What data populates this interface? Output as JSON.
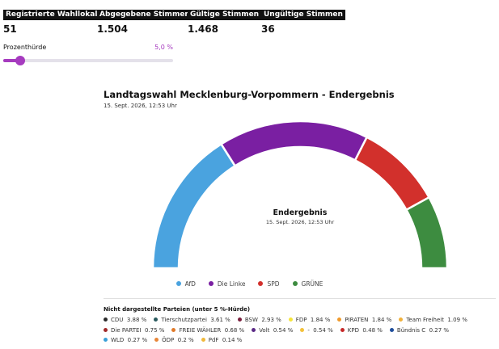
{
  "stats": [
    {
      "label": "Registrierte Wahllokale",
      "value": "51"
    },
    {
      "label": "Abgegebene Stimmen",
      "value": "1.504"
    },
    {
      "label": "Gültige Stimmen",
      "value": "1.468"
    },
    {
      "label": "Ungültige Stimmen",
      "value": "36"
    }
  ],
  "threshold": {
    "label": "Prozenthürde",
    "value_label": "5,0 %",
    "value": 5.0,
    "max": 50
  },
  "chart_title": "Landtagswahl Mecklenburg-Vorpommern - Endergebnis",
  "chart_subtitle": "15. Sept. 2026, 12:53 Uhr",
  "center_title": "Endergebnis",
  "center_subtitle": "15. Sept. 2026, 12:53 Uhr",
  "chart_data": {
    "type": "pie",
    "variant": "semicircle-parliament",
    "series": [
      {
        "name": "AfD",
        "share": 0.32,
        "color": "#4aa3df"
      },
      {
        "name": "Die Linke",
        "share": 0.33,
        "color": "#7a1fa2"
      },
      {
        "name": "SPD",
        "share": 0.19,
        "color": "#d2302c"
      },
      {
        "name": "GRÜNE",
        "share": 0.16,
        "color": "#3d8c40"
      }
    ]
  },
  "others_header": "Nicht dargestellte Parteien (unter 5 %-Hürde)",
  "others": [
    {
      "name": "CDU",
      "value": "3.88 %",
      "color": "#2b2b2b"
    },
    {
      "name": "Tierschutzpartei",
      "value": "3.61 %",
      "color": "#2a5a5e"
    },
    {
      "name": "BSW",
      "value": "2.93 %",
      "color": "#7a1f3d"
    },
    {
      "name": "FDP",
      "value": "1.84 %",
      "color": "#f5e43a"
    },
    {
      "name": "PIRATEN",
      "value": "1.84 %",
      "color": "#f09a2c"
    },
    {
      "name": "Team Freiheit",
      "value": "1.09 %",
      "color": "#f0b13c"
    },
    {
      "name": "Die PARTEI",
      "value": "0.75 %",
      "color": "#a12a2a"
    },
    {
      "name": "FREIE WÄHLER",
      "value": "0.68 %",
      "color": "#e07a2a"
    },
    {
      "name": "Volt",
      "value": "0.54 %",
      "color": "#5b2a86"
    },
    {
      "name": "-",
      "value": "0.54 %",
      "color": "#f3c13a"
    },
    {
      "name": "KPD",
      "value": "0.48 %",
      "color": "#c62828"
    },
    {
      "name": "Bündnis C",
      "value": "0.27 %",
      "color": "#1f4e9c"
    },
    {
      "name": "WLD",
      "value": "0.27 %",
      "color": "#3aa0d8"
    },
    {
      "name": "ÖDP",
      "value": "0.2 %",
      "color": "#e8873a"
    },
    {
      "name": "PdF",
      "value": "0.14 %",
      "color": "#f0b93c"
    }
  ]
}
